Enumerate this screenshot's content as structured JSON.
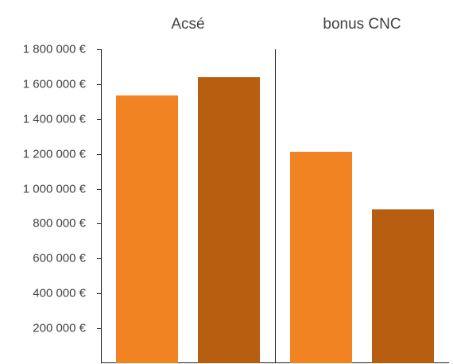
{
  "chart_data": {
    "type": "bar",
    "categories": [
      "Acsé",
      "bonus CNC"
    ],
    "series": [
      {
        "values": [
          1535000,
          1212000
        ],
        "color": "#F28323"
      },
      {
        "values": [
          1640000,
          882000
        ],
        "color": "#B85E10"
      }
    ],
    "title": "",
    "xlabel": "",
    "ylabel": "",
    "ylim": [
      0,
      1800000
    ],
    "yticks": [
      {
        "value": 200000,
        "label": "200 000 €"
      },
      {
        "value": 400000,
        "label": "400 000 €"
      },
      {
        "value": 600000,
        "label": "600 000 €"
      },
      {
        "value": 800000,
        "label": "800 000 €"
      },
      {
        "value": 1000000,
        "label": "1 000 000 €"
      },
      {
        "value": 1200000,
        "label": "1 200 000 €"
      },
      {
        "value": 1400000,
        "label": "1 400 000 €"
      },
      {
        "value": 1600000,
        "label": "1 600 000 €"
      },
      {
        "value": 1800000,
        "label": "1 800 000 €"
      }
    ],
    "grid": false,
    "legend": "none",
    "group_labels_position": "top",
    "group_separator": true
  }
}
